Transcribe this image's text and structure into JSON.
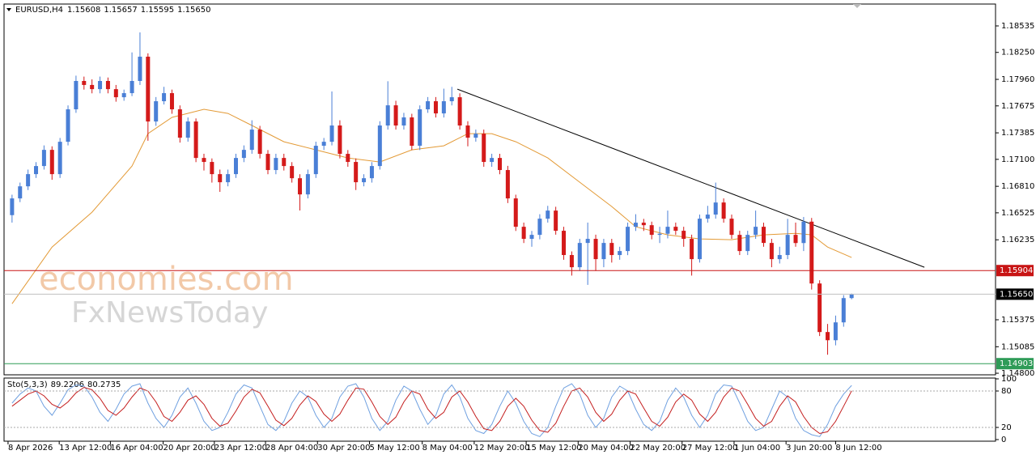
{
  "chart_data": {
    "type": "candlestick",
    "header": {
      "symbol": "EURUSD,H4",
      "ohlc": [
        "1.15608",
        "1.15657",
        "1.15595",
        "1.15650"
      ]
    },
    "watermark": [
      "economies.com",
      "FxNewsToday"
    ],
    "up_color": "#4a7fd6",
    "down_color": "#d41a1a",
    "xlim": [
      -1,
      123
    ],
    "ylim": [
      1.14783,
      1.1877
    ],
    "yticks": [
      1.18535,
      {
        "value": 1.1825,
        "label": "1.18250"
      },
      {
        "value": 1.1796,
        "label": "1.17960"
      },
      1.17675,
      1.17385,
      {
        "value": 1.171,
        "label": "1.17100"
      },
      {
        "value": 1.1681,
        "label": "1.16810"
      },
      1.16525,
      1.16235,
      1.15375,
      1.15085,
      {
        "value": 1.148,
        "label": "1.14800"
      }
    ],
    "xticks": [
      {
        "value": -0.5,
        "label": "8 Apr 2026"
      },
      {
        "value": 5.9,
        "label": "13 Apr 12:00"
      },
      {
        "value": 12.3,
        "label": "16 Apr 04:00"
      },
      {
        "value": 18.9,
        "label": "20 Apr 20:00"
      },
      {
        "value": 25.3,
        "label": "23 Apr 12:00"
      },
      {
        "value": 31.7,
        "label": "28 Apr 04:00"
      },
      {
        "value": 38.2,
        "label": "30 Apr 20:00"
      },
      {
        "value": 44.7,
        "label": "5 May 12:00"
      },
      {
        "value": 51.3,
        "label": "8 May 04:00"
      },
      {
        "value": 57.8,
        "label": "12 May 20:00"
      },
      {
        "value": 64.3,
        "label": "15 May 12:00"
      },
      {
        "value": 70.8,
        "label": "20 May 04:00"
      },
      {
        "value": 77.3,
        "label": "22 May 20:00"
      },
      {
        "value": 83.8,
        "label": "27 May 12:00"
      },
      {
        "value": 90.3,
        "label": "1 Jun 04:00"
      },
      {
        "value": 96.8,
        "label": "3 Jun 20:00"
      },
      {
        "value": 103.0,
        "label": "8 Jun 12:00"
      }
    ],
    "candles": [
      [
        1.165,
        1.1672,
        1.1642,
        1.1668
      ],
      [
        1.1668,
        1.1685,
        1.1664,
        1.1681
      ],
      [
        1.1681,
        1.1699,
        1.1677,
        1.16941
      ],
      [
        1.16941,
        1.1707,
        1.169,
        1.17028
      ],
      [
        1.17028,
        1.1725,
        1.1699,
        1.17202
      ],
      [
        1.17202,
        1.1724,
        1.1688,
        1.16941
      ],
      [
        1.16941,
        1.1733,
        1.169,
        1.17289
      ],
      [
        1.17289,
        1.1768,
        1.1725,
        1.17638
      ],
      [
        1.17638,
        1.18,
        1.176,
        1.17943
      ],
      [
        1.17943,
        1.1799,
        1.1785,
        1.179
      ],
      [
        1.179,
        1.1796,
        1.1781,
        1.17855
      ],
      [
        1.17855,
        1.1799,
        1.1781,
        1.17943
      ],
      [
        1.17943,
        1.1798,
        1.1781,
        1.17855
      ],
      [
        1.17855,
        1.179,
        1.1772,
        1.17768
      ],
      [
        1.17768,
        1.1785,
        1.1773,
        1.17812
      ],
      [
        1.17812,
        1.1825,
        1.1778,
        1.17943
      ],
      [
        1.17943,
        1.18465,
        1.179,
        1.18204
      ],
      [
        1.18204,
        1.1824,
        1.173,
        1.17507
      ],
      [
        1.17507,
        1.1777,
        1.1746,
        1.17725
      ],
      [
        1.17725,
        1.1788,
        1.1769,
        1.17812
      ],
      [
        1.17812,
        1.1785,
        1.1759,
        1.17638
      ],
      [
        1.17638,
        1.1768,
        1.1728,
        1.17333
      ],
      [
        1.17333,
        1.1755,
        1.1729,
        1.17507
      ],
      [
        1.17507,
        1.1754,
        1.1707,
        1.17115
      ],
      [
        1.17115,
        1.1716,
        1.1698,
        1.17072
      ],
      [
        1.17072,
        1.1711,
        1.1685,
        1.16941
      ],
      [
        1.16941,
        1.1699,
        1.1675,
        1.16854
      ],
      [
        1.16854,
        1.1699,
        1.1681,
        1.16941
      ],
      [
        1.16941,
        1.1716,
        1.169,
        1.17115
      ],
      [
        1.17115,
        1.1725,
        1.1707,
        1.17202
      ],
      [
        1.17202,
        1.1752,
        1.1716,
        1.1742
      ],
      [
        1.1742,
        1.1746,
        1.1711,
        1.17159
      ],
      [
        1.17159,
        1.172,
        1.1694,
        1.16985
      ],
      [
        1.16985,
        1.1716,
        1.1694,
        1.17115
      ],
      [
        1.17115,
        1.1716,
        1.1698,
        1.17028
      ],
      [
        1.17028,
        1.1707,
        1.1685,
        1.16897
      ],
      [
        1.16897,
        1.1694,
        1.1655,
        1.16723
      ],
      [
        1.16723,
        1.1699,
        1.1668,
        1.16941
      ],
      [
        1.16941,
        1.1729,
        1.169,
        1.17246
      ],
      [
        1.17246,
        1.1733,
        1.172,
        1.17289
      ],
      [
        1.17289,
        1.1783,
        1.1725,
        1.17464
      ],
      [
        1.17464,
        1.1752,
        1.1711,
        1.17159
      ],
      [
        1.17159,
        1.172,
        1.1702,
        1.17072
      ],
      [
        1.17072,
        1.1711,
        1.1677,
        1.16854
      ],
      [
        1.16854,
        1.1694,
        1.1681,
        1.16897
      ],
      [
        1.16897,
        1.1707,
        1.1685,
        1.17028
      ],
      [
        1.17028,
        1.1751,
        1.1699,
        1.17464
      ],
      [
        1.17464,
        1.1794,
        1.1742,
        1.17681
      ],
      [
        1.17681,
        1.1773,
        1.1742,
        1.17464
      ],
      [
        1.17464,
        1.176,
        1.1742,
        1.17551
      ],
      [
        1.17551,
        1.1759,
        1.172,
        1.17246
      ],
      [
        1.17246,
        1.1768,
        1.172,
        1.17638
      ],
      [
        1.17638,
        1.1777,
        1.176,
        1.17725
      ],
      [
        1.17725,
        1.1777,
        1.1755,
        1.17594
      ],
      [
        1.17594,
        1.1786,
        1.1755,
        1.17725
      ],
      [
        1.17725,
        1.1788,
        1.1768,
        1.17768
      ],
      [
        1.17768,
        1.1781,
        1.1742,
        1.17464
      ],
      [
        1.17464,
        1.1751,
        1.1724,
        1.17333
      ],
      [
        1.17333,
        1.1742,
        1.1729,
        1.17376
      ],
      [
        1.17376,
        1.1742,
        1.1702,
        1.17072
      ],
      [
        1.17072,
        1.1716,
        1.1702,
        1.17115
      ],
      [
        1.17115,
        1.1716,
        1.1694,
        1.16985
      ],
      [
        1.16985,
        1.1703,
        1.1663,
        1.1668
      ],
      [
        1.1668,
        1.1672,
        1.1633,
        1.16375
      ],
      [
        1.16375,
        1.1642,
        1.162,
        1.16245
      ],
      [
        1.16245,
        1.1633,
        1.1616,
        1.16288
      ],
      [
        1.16288,
        1.1651,
        1.1624,
        1.16462
      ],
      [
        1.16462,
        1.166,
        1.1642,
        1.16549
      ],
      [
        1.16549,
        1.1659,
        1.1629,
        1.16332
      ],
      [
        1.16332,
        1.16375,
        1.1602,
        1.16071
      ],
      [
        1.16071,
        1.1611,
        1.1585,
        1.1594
      ],
      [
        1.1594,
        1.16245,
        1.159,
        1.16201
      ],
      [
        1.16201,
        1.1642,
        1.1575,
        1.16245
      ],
      [
        1.16245,
        1.1629,
        1.159,
        1.16027
      ],
      [
        1.16027,
        1.16245,
        1.1594,
        1.16201
      ],
      [
        1.16201,
        1.16245,
        1.1599,
        1.16071
      ],
      [
        1.16071,
        1.1616,
        1.1602,
        1.16114
      ],
      [
        1.16114,
        1.1642,
        1.1607,
        1.16375
      ],
      [
        1.16375,
        1.1651,
        1.1633,
        1.16419
      ],
      [
        1.16419,
        1.1646,
        1.1633,
        1.16392
      ],
      [
        1.16392,
        1.1643,
        1.1624,
        1.16288
      ],
      [
        1.16288,
        1.16375,
        1.162,
        1.163
      ],
      [
        1.163,
        1.16549,
        1.1625,
        1.16375
      ],
      [
        1.16375,
        1.1642,
        1.16288,
        1.16332
      ],
      [
        1.16332,
        1.16375,
        1.1616,
        1.16245
      ],
      [
        1.16245,
        1.1629,
        1.1585,
        1.16027
      ],
      [
        1.16027,
        1.16506,
        1.1599,
        1.16462
      ],
      [
        1.16462,
        1.166,
        1.1642,
        1.16506
      ],
      [
        1.16506,
        1.1685,
        1.16462,
        1.16636
      ],
      [
        1.16636,
        1.1668,
        1.16419,
        1.16462
      ],
      [
        1.16462,
        1.16506,
        1.16245,
        1.16288
      ],
      [
        1.16288,
        1.16332,
        1.16071,
        1.16114
      ],
      [
        1.16114,
        1.16332,
        1.16071,
        1.16288
      ],
      [
        1.16288,
        1.16549,
        1.16245,
        1.16375
      ],
      [
        1.16375,
        1.16419,
        1.1616,
        1.16201
      ],
      [
        1.16201,
        1.16245,
        1.1594,
        1.16027
      ],
      [
        1.16027,
        1.1616,
        1.1598,
        1.16071
      ],
      [
        1.16071,
        1.1646,
        1.16027,
        1.16288
      ],
      [
        1.16288,
        1.1642,
        1.1616,
        1.162
      ],
      [
        1.162,
        1.1648,
        1.16114,
        1.1643
      ],
      [
        1.1643,
        1.1647,
        1.157,
        1.15765
      ],
      [
        1.15765,
        1.158,
        1.152,
        1.15243
      ],
      [
        1.15243,
        1.1533,
        1.14999,
        1.15155
      ],
      [
        1.15155,
        1.1542,
        1.151,
        1.15347
      ],
      [
        1.15347,
        1.1564,
        1.153,
        1.15608
      ],
      [
        1.15608,
        1.15657,
        1.15595,
        1.1565
      ]
    ],
    "moving_average": {
      "color": "#e39a36",
      "x": [
        0,
        5,
        10,
        15,
        17,
        20,
        24,
        27,
        30,
        34,
        38,
        42,
        46,
        50,
        54,
        57,
        60,
        63,
        67,
        71,
        75,
        78,
        82,
        86,
        90,
        94,
        98,
        100,
        102,
        105
      ],
      "values": [
        1.15547,
        1.16157,
        1.16532,
        1.17028,
        1.17376,
        1.17551,
        1.17638,
        1.17594,
        1.17464,
        1.17289,
        1.17202,
        1.17115,
        1.17072,
        1.17202,
        1.17246,
        1.17376,
        1.17376,
        1.17289,
        1.17115,
        1.16854,
        1.16593,
        1.16375,
        1.16288,
        1.16245,
        1.16236,
        1.16288,
        1.16305,
        1.16288,
        1.16157,
        1.16044
      ]
    },
    "trendline": {
      "color": "#000000",
      "x": [
        55.7,
        114.1
      ],
      "values": [
        1.17855,
        1.1594
      ]
    },
    "levels": [
      {
        "value": 1.15904,
        "color": "#c81414"
      },
      {
        "value": 1.1565,
        "label": "1.15650",
        "color": "#000000",
        "line_color": "#c0c0c0"
      },
      {
        "value": 1.14903,
        "color": "#2e9b57"
      }
    ],
    "oscillator": {
      "type": "line",
      "label": "Sto(5,3,3)",
      "ylim": [
        0,
        100
      ],
      "yticks": [
        0,
        20,
        80,
        100
      ],
      "series": [
        {
          "color": "#6fa0e0",
          "values": [
            60,
            75,
            85,
            80,
            55,
            40,
            60,
            82,
            90,
            88,
            70,
            45,
            30,
            50,
            75,
            88,
            92,
            60,
            35,
            20,
            40,
            70,
            85,
            60,
            30,
            15,
            20,
            45,
            75,
            90,
            85,
            55,
            25,
            15,
            30,
            60,
            80,
            70,
            40,
            20,
            35,
            70,
            88,
            92,
            70,
            35,
            15,
            30,
            65,
            88,
            80,
            50,
            25,
            40,
            75,
            90,
            70,
            35,
            15,
            10,
            25,
            55,
            80,
            60,
            30,
            10,
            5,
            20,
            55,
            85,
            92,
            75,
            40,
            20,
            35,
            70,
            88,
            80,
            50,
            25,
            15,
            30,
            65,
            85,
            70,
            40,
            20,
            40,
            75,
            90,
            88,
            60,
            30,
            15,
            20,
            50,
            80,
            70,
            35,
            15,
            8,
            5,
            25,
            55,
            75,
            89.2206
          ]
        },
        {
          "color": "#c41e1e",
          "values": [
            55,
            65,
            75,
            80,
            72,
            58,
            52,
            62,
            77,
            86,
            82,
            68,
            48,
            40,
            52,
            70,
            85,
            80,
            62,
            38,
            30,
            45,
            65,
            72,
            58,
            35,
            22,
            27,
            47,
            70,
            83,
            77,
            55,
            32,
            23,
            35,
            57,
            72,
            63,
            42,
            30,
            42,
            65,
            85,
            83,
            62,
            38,
            25,
            37,
            62,
            80,
            75,
            50,
            35,
            45,
            70,
            80,
            62,
            38,
            18,
            15,
            30,
            55,
            68,
            55,
            32,
            15,
            12,
            27,
            55,
            80,
            85,
            70,
            45,
            30,
            42,
            65,
            80,
            75,
            52,
            30,
            22,
            37,
            62,
            75,
            65,
            42,
            30,
            45,
            70,
            85,
            80,
            58,
            35,
            22,
            30,
            55,
            72,
            62,
            38,
            20,
            10,
            13,
            30,
            55,
            80.2735
          ]
        }
      ]
    }
  }
}
